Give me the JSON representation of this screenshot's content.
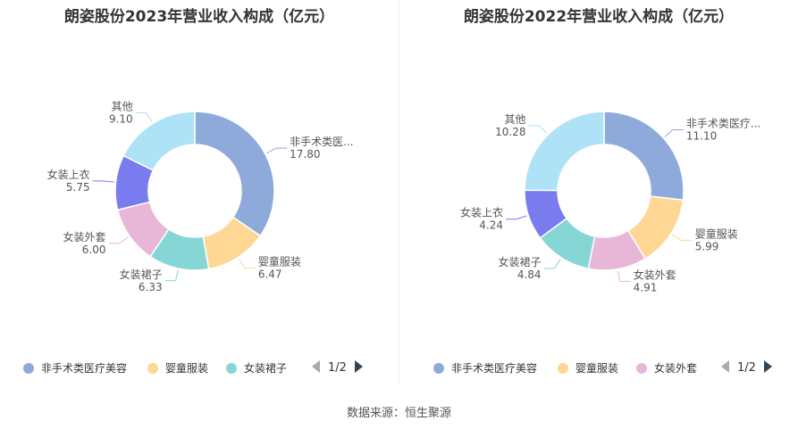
{
  "chart_data": [
    {
      "type": "pie",
      "donut": true,
      "title": "朗姿股份2023年营业收入构成（亿元）",
      "slices": [
        {
          "name": "非手术类医疗美容",
          "label": "非手术类医...",
          "value": 17.8,
          "value_label": "17.80",
          "color": "#8eaadb"
        },
        {
          "name": "婴童服装",
          "label": "婴童服装",
          "value": 6.47,
          "value_label": "6.47",
          "color": "#fdd793"
        },
        {
          "name": "女装裙子",
          "label": "女装裙子",
          "value": 6.33,
          "value_label": "6.33",
          "color": "#87d6d6"
        },
        {
          "name": "女装外套",
          "label": "女装外套",
          "value": 6.0,
          "value_label": "6.00",
          "color": "#e8b7d8"
        },
        {
          "name": "女装上衣",
          "label": "女装上衣",
          "value": 5.75,
          "value_label": "5.75",
          "color": "#7b7bf0"
        },
        {
          "name": "其他",
          "label": "其他",
          "value": 9.1,
          "value_label": "9.10",
          "color": "#aee2f7"
        }
      ],
      "legend": {
        "items": [
          {
            "label": "非手术类医疗美容",
            "color": "#8eaadb"
          },
          {
            "label": "婴童服装",
            "color": "#fdd793"
          },
          {
            "label": "女装裙子",
            "color": "#87d6d6"
          }
        ],
        "page": "1/2",
        "placement": "bottom"
      }
    },
    {
      "type": "pie",
      "donut": true,
      "title": "朗姿股份2022年营业收入构成（亿元）",
      "slices": [
        {
          "name": "非手术类医疗美容",
          "label": "非手术类医疗...",
          "value": 11.1,
          "value_label": "11.10",
          "color": "#8eaadb"
        },
        {
          "name": "婴童服装",
          "label": "婴童服装",
          "value": 5.99,
          "value_label": "5.99",
          "color": "#fdd793"
        },
        {
          "name": "女装外套",
          "label": "女装外套",
          "value": 4.91,
          "value_label": "4.91",
          "color": "#e8b7d8"
        },
        {
          "name": "女装裙子",
          "label": "女装裙子",
          "value": 4.84,
          "value_label": "4.84",
          "color": "#87d6d6"
        },
        {
          "name": "女装上衣",
          "label": "女装上衣",
          "value": 4.24,
          "value_label": "4.24",
          "color": "#7b7bf0"
        },
        {
          "name": "其他",
          "label": "其他",
          "value": 10.28,
          "value_label": "10.28",
          "color": "#aee2f7"
        }
      ],
      "legend": {
        "items": [
          {
            "label": "非手术类医疗美容",
            "color": "#8eaadb"
          },
          {
            "label": "婴童服装",
            "color": "#fdd793"
          },
          {
            "label": "女装外套",
            "color": "#e8b7d8"
          }
        ],
        "page": "1/2",
        "placement": "bottom"
      }
    }
  ],
  "footer": {
    "source": "数据来源：恒生聚源"
  }
}
